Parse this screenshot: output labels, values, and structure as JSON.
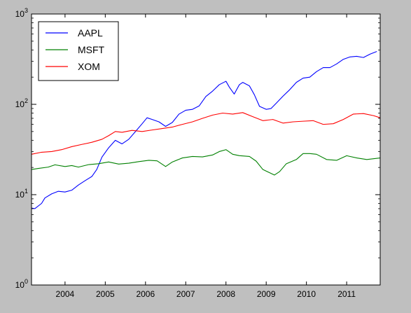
{
  "chart_data": {
    "type": "line",
    "title": "",
    "xlabel": "",
    "ylabel": "",
    "x_scale": "time",
    "y_scale": "log",
    "xlim": [
      "2003-03-01",
      "2011-11-01"
    ],
    "ylim": [
      1,
      1000
    ],
    "x_ticks": [
      "2004",
      "2005",
      "2006",
      "2007",
      "2008",
      "2009",
      "2010",
      "2011"
    ],
    "y_ticks": [
      {
        "value": 1,
        "base": "10",
        "exp": "0"
      },
      {
        "value": 10,
        "base": "10",
        "exp": "1"
      },
      {
        "value": 100,
        "base": "10",
        "exp": "2"
      },
      {
        "value": 1000,
        "base": "10",
        "exp": "3"
      }
    ],
    "grid": false,
    "legend_position": "upper-left",
    "series": [
      {
        "name": "AAPL",
        "color": "#0000ff",
        "points": [
          [
            "2003-03-01",
            7.1
          ],
          [
            "2003-04-01",
            7.0
          ],
          [
            "2003-06-01",
            8.0
          ],
          [
            "2003-07-01",
            9.2
          ],
          [
            "2003-09-01",
            10.2
          ],
          [
            "2003-11-01",
            10.9
          ],
          [
            "2004-01-01",
            10.7
          ],
          [
            "2004-03-01",
            11.2
          ],
          [
            "2004-05-01",
            12.8
          ],
          [
            "2004-07-01",
            14.3
          ],
          [
            "2004-09-01",
            15.9
          ],
          [
            "2004-10-15",
            19.0
          ],
          [
            "2004-12-01",
            26.0
          ],
          [
            "2005-02-01",
            33.0
          ],
          [
            "2005-04-01",
            40.0
          ],
          [
            "2005-06-01",
            36.5
          ],
          [
            "2005-08-01",
            41.0
          ],
          [
            "2005-10-01",
            50.0
          ],
          [
            "2005-12-01",
            61.0
          ],
          [
            "2006-01-15",
            71.0
          ],
          [
            "2006-03-01",
            68.0
          ],
          [
            "2006-05-01",
            64.0
          ],
          [
            "2006-07-01",
            57.0
          ],
          [
            "2006-09-01",
            63.0
          ],
          [
            "2006-11-01",
            78.0
          ],
          [
            "2007-01-01",
            86.0
          ],
          [
            "2007-03-01",
            88.0
          ],
          [
            "2007-05-01",
            96.0
          ],
          [
            "2007-07-01",
            122.0
          ],
          [
            "2007-09-01",
            140.0
          ],
          [
            "2007-11-01",
            165.0
          ],
          [
            "2008-01-01",
            180.0
          ],
          [
            "2008-02-01",
            155.0
          ],
          [
            "2008-03-15",
            130.0
          ],
          [
            "2008-05-01",
            165.0
          ],
          [
            "2008-06-01",
            175.0
          ],
          [
            "2008-08-01",
            160.0
          ],
          [
            "2008-09-15",
            128.0
          ],
          [
            "2008-11-01",
            95.0
          ],
          [
            "2009-01-01",
            88.0
          ],
          [
            "2009-02-15",
            90.0
          ],
          [
            "2009-04-01",
            103.0
          ],
          [
            "2009-06-01",
            123.0
          ],
          [
            "2009-08-01",
            145.0
          ],
          [
            "2009-10-01",
            175.0
          ],
          [
            "2009-12-01",
            195.0
          ],
          [
            "2010-02-01",
            200.0
          ],
          [
            "2010-04-01",
            230.0
          ],
          [
            "2010-06-01",
            255.0
          ],
          [
            "2010-08-01",
            255.0
          ],
          [
            "2010-10-01",
            280.0
          ],
          [
            "2010-12-01",
            315.0
          ],
          [
            "2011-02-01",
            335.0
          ],
          [
            "2011-04-01",
            340.0
          ],
          [
            "2011-06-01",
            330.0
          ],
          [
            "2011-08-01",
            360.0
          ],
          [
            "2011-10-01",
            385.0
          ]
        ]
      },
      {
        "name": "MSFT",
        "color": "#008000",
        "points": [
          [
            "2003-03-01",
            19.0
          ],
          [
            "2003-05-01",
            19.5
          ],
          [
            "2003-08-01",
            20.2
          ],
          [
            "2003-10-01",
            21.4
          ],
          [
            "2004-01-01",
            20.5
          ],
          [
            "2004-03-01",
            21.0
          ],
          [
            "2004-05-01",
            20.2
          ],
          [
            "2004-08-01",
            21.5
          ],
          [
            "2004-11-01",
            22.0
          ],
          [
            "2005-02-01",
            23.0
          ],
          [
            "2005-05-01",
            21.8
          ],
          [
            "2005-08-01",
            22.3
          ],
          [
            "2005-11-01",
            23.2
          ],
          [
            "2006-02-01",
            24.0
          ],
          [
            "2006-04-15",
            23.7
          ],
          [
            "2006-07-01",
            20.5
          ],
          [
            "2006-09-01",
            23.0
          ],
          [
            "2006-12-01",
            25.5
          ],
          [
            "2007-03-01",
            26.5
          ],
          [
            "2007-06-01",
            26.2
          ],
          [
            "2007-09-01",
            27.5
          ],
          [
            "2007-11-01",
            30.0
          ],
          [
            "2008-01-01",
            31.5
          ],
          [
            "2008-03-01",
            28.0
          ],
          [
            "2008-05-01",
            27.0
          ],
          [
            "2008-08-01",
            26.5
          ],
          [
            "2008-10-01",
            23.5
          ],
          [
            "2008-12-01",
            19.0
          ],
          [
            "2009-02-01",
            17.5
          ],
          [
            "2009-03-15",
            16.5
          ],
          [
            "2009-05-01",
            18.0
          ],
          [
            "2009-07-01",
            22.0
          ],
          [
            "2009-10-01",
            24.5
          ],
          [
            "2009-12-01",
            28.5
          ],
          [
            "2010-02-01",
            28.5
          ],
          [
            "2010-04-01",
            28.0
          ],
          [
            "2010-07-01",
            24.5
          ],
          [
            "2010-10-01",
            24.0
          ],
          [
            "2011-01-01",
            27.0
          ],
          [
            "2011-04-01",
            25.5
          ],
          [
            "2011-07-01",
            24.5
          ],
          [
            "2011-11-01",
            25.5
          ]
        ]
      },
      {
        "name": "XOM",
        "color": "#ff0000",
        "points": [
          [
            "2003-03-01",
            28.0
          ],
          [
            "2003-06-01",
            29.5
          ],
          [
            "2003-09-01",
            30.0
          ],
          [
            "2003-12-01",
            31.5
          ],
          [
            "2004-03-01",
            34.0
          ],
          [
            "2004-06-01",
            36.0
          ],
          [
            "2004-09-01",
            38.0
          ],
          [
            "2004-12-01",
            41.0
          ],
          [
            "2005-02-01",
            45.0
          ],
          [
            "2005-04-01",
            50.0
          ],
          [
            "2005-06-01",
            49.0
          ],
          [
            "2005-09-01",
            51.5
          ],
          [
            "2005-12-01",
            50.0
          ],
          [
            "2006-03-01",
            52.0
          ],
          [
            "2006-06-01",
            54.0
          ],
          [
            "2006-09-01",
            56.0
          ],
          [
            "2006-12-01",
            60.0
          ],
          [
            "2007-03-01",
            64.0
          ],
          [
            "2007-06-01",
            70.0
          ],
          [
            "2007-09-01",
            76.0
          ],
          [
            "2007-12-01",
            80.0
          ],
          [
            "2008-03-01",
            78.0
          ],
          [
            "2008-06-01",
            81.0
          ],
          [
            "2008-09-01",
            73.0
          ],
          [
            "2008-12-01",
            66.0
          ],
          [
            "2009-03-01",
            68.0
          ],
          [
            "2009-06-01",
            62.0
          ],
          [
            "2009-09-01",
            64.0
          ],
          [
            "2009-12-01",
            65.0
          ],
          [
            "2010-03-01",
            66.0
          ],
          [
            "2010-06-01",
            60.0
          ],
          [
            "2010-09-01",
            61.0
          ],
          [
            "2010-12-01",
            68.0
          ],
          [
            "2011-03-01",
            78.0
          ],
          [
            "2011-06-01",
            79.0
          ],
          [
            "2011-09-01",
            75.0
          ],
          [
            "2011-11-01",
            71.0
          ]
        ]
      }
    ]
  }
}
